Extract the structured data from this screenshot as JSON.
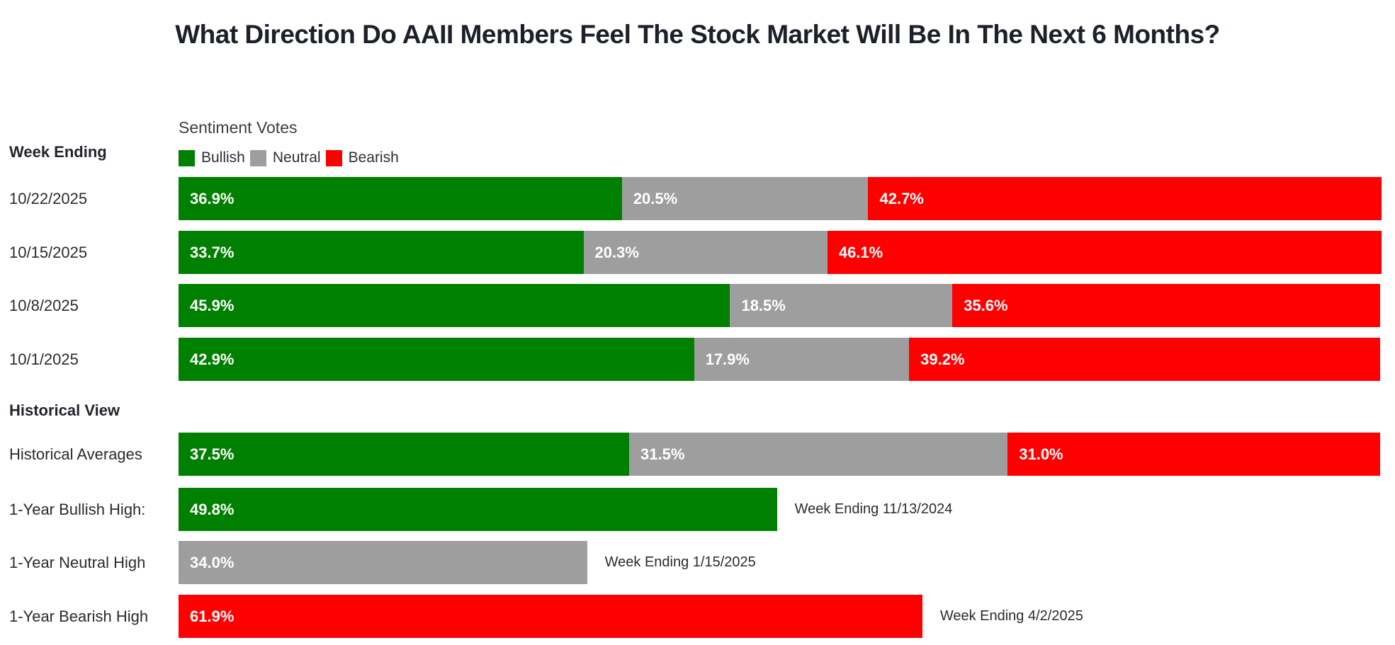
{
  "title": "What Direction Do AAII Members Feel The Stock Market Will Be In The Next 6 Months?",
  "headers": {
    "week_ending": "Week Ending",
    "historical_view": "Historical View"
  },
  "legend": {
    "title": "Sentiment Votes",
    "items": [
      {
        "label": "Bullish",
        "color": "#008000"
      },
      {
        "label": "Neutral",
        "color": "#9e9e9e"
      },
      {
        "label": "Bearish",
        "color": "#fe0000"
      }
    ]
  },
  "chart_data": {
    "type": "bar",
    "orientation": "horizontal",
    "stacked": true,
    "value_unit": "percent",
    "xlim": [
      0,
      100
    ],
    "legend_position": "top",
    "categories": [
      "10/22/2025",
      "10/15/2025",
      "10/8/2025",
      "10/1/2025"
    ],
    "series": [
      {
        "name": "Bullish",
        "color": "#008000",
        "values": [
          36.9,
          33.7,
          45.9,
          42.9
        ]
      },
      {
        "name": "Neutral",
        "color": "#9e9e9e",
        "values": [
          20.5,
          20.3,
          18.5,
          17.9
        ]
      },
      {
        "name": "Bearish",
        "color": "#fe0000",
        "values": [
          42.7,
          46.1,
          35.6,
          39.2
        ]
      }
    ],
    "historical": [
      {
        "label": "Historical Averages",
        "segments": [
          {
            "name": "Bullish",
            "value": 37.5
          },
          {
            "name": "Neutral",
            "value": 31.5
          },
          {
            "name": "Bearish",
            "value": 31.0
          }
        ]
      },
      {
        "label": "1-Year Bullish High:",
        "segments": [
          {
            "name": "Bullish",
            "value": 49.8
          }
        ],
        "annotation": "Week Ending 11/13/2024"
      },
      {
        "label": "1-Year Neutral High",
        "segments": [
          {
            "name": "Neutral",
            "value": 34.0
          }
        ],
        "annotation": "Week Ending 1/15/2025"
      },
      {
        "label": "1-Year Bearish High",
        "segments": [
          {
            "name": "Bearish",
            "value": 61.9
          }
        ],
        "annotation": "Week Ending 4/2/2025"
      }
    ]
  }
}
